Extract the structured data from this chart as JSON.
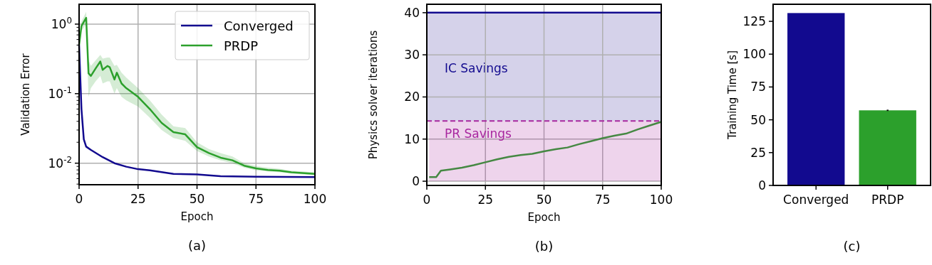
{
  "chart_data": [
    {
      "type": "line",
      "title": "(a)",
      "xlabel": "Epoch",
      "ylabel": "Validation Error",
      "log": "y",
      "xlim": [
        0,
        100
      ],
      "ylim": [
        0.0049,
        1.93
      ],
      "xticks": [
        0,
        25,
        50,
        75,
        100
      ],
      "yticks": [
        {
          "value": 1,
          "label": "10$^{0}$"
        },
        {
          "value": 0.1,
          "label": "10$^{-1}$"
        },
        {
          "value": 0.01,
          "label": "10$^{-2}$"
        }
      ],
      "grid": true,
      "legend": "top right",
      "series": [
        {
          "name": "Converged",
          "color": "#120a8f",
          "x": [
            0,
            1,
            2,
            3,
            5,
            10,
            15,
            20,
            25,
            30,
            40,
            50,
            60,
            75,
            100
          ],
          "values": [
            0.5,
            0.06,
            0.022,
            0.0173,
            0.0155,
            0.0122,
            0.01,
            0.0089,
            0.0082,
            0.0079,
            0.007,
            0.0069,
            0.0065,
            0.0064,
            0.0063
          ]
        },
        {
          "name": "PRDP",
          "color": "#2ca02c",
          "x": [
            0,
            1,
            3,
            4,
            5,
            7,
            9,
            10,
            12,
            13,
            15,
            16,
            18,
            20,
            25,
            30,
            35,
            40,
            45,
            50,
            55,
            60,
            65,
            70,
            75,
            80,
            85,
            90,
            100
          ],
          "values": [
            0.5,
            0.94,
            1.23,
            0.196,
            0.18,
            0.23,
            0.29,
            0.22,
            0.25,
            0.24,
            0.16,
            0.2,
            0.14,
            0.12,
            0.09,
            0.06,
            0.038,
            0.028,
            0.026,
            0.017,
            0.014,
            0.012,
            0.011,
            0.0092,
            0.0084,
            0.008,
            0.0078,
            0.0074,
            0.007
          ],
          "lower": [
            0.45,
            0.8,
            1.0,
            0.09,
            0.12,
            0.15,
            0.18,
            0.14,
            0.15,
            0.15,
            0.1,
            0.12,
            0.09,
            0.08,
            0.065,
            0.045,
            0.03,
            0.023,
            0.021,
            0.015,
            0.0125,
            0.011,
            0.01,
            0.0086,
            0.0079,
            0.0076,
            0.0074,
            0.0071,
            0.0067
          ],
          "upper": [
            0.55,
            1.1,
            1.5,
            0.3,
            0.25,
            0.3,
            0.36,
            0.32,
            0.33,
            0.33,
            0.25,
            0.26,
            0.2,
            0.17,
            0.12,
            0.08,
            0.05,
            0.034,
            0.032,
            0.02,
            0.016,
            0.014,
            0.0125,
            0.01,
            0.0091,
            0.0086,
            0.0083,
            0.0078,
            0.0074
          ]
        }
      ]
    },
    {
      "type": "line",
      "title": "(b)",
      "xlabel": "Epoch",
      "ylabel": "Physics solver iterations",
      "xlim": [
        0,
        100
      ],
      "ylim": [
        -1,
        42
      ],
      "xticks": [
        0,
        25,
        50,
        75,
        100
      ],
      "yticks": [
        0,
        10,
        20,
        30,
        40
      ],
      "grid": true,
      "bands": [
        {
          "axis": "y",
          "from": 14.3,
          "to": 40,
          "label": "IC Savings",
          "color": "#d0cde8"
        }
      ],
      "ref_lines": [
        {
          "axis": "y",
          "value": 14.3,
          "label": "PR Savings",
          "color": "#a8279f",
          "line_style": "dashed"
        }
      ],
      "series": [
        {
          "color": "#2ca02c",
          "x": [
            1,
            4,
            6,
            10,
            15,
            20,
            25,
            30,
            35,
            40,
            45,
            50,
            55,
            60,
            65,
            70,
            75,
            80,
            85,
            90,
            95,
            100
          ],
          "values": [
            1,
            1,
            2.5,
            2.8,
            3.2,
            3.8,
            4.5,
            5.2,
            5.8,
            6.2,
            6.5,
            7.1,
            7.6,
            8,
            8.8,
            9.5,
            10.2,
            10.8,
            11.3,
            12.3,
            13.2,
            14.1
          ]
        },
        {
          "type": "area",
          "color": "#a8279f",
          "x": [
            1,
            4,
            6,
            10,
            15,
            20,
            25,
            30,
            35,
            40,
            45,
            50,
            55,
            60,
            65,
            70,
            75,
            80,
            85,
            90,
            95,
            100
          ],
          "values": [
            14.3,
            14.3,
            14.3,
            14.3,
            14.3,
            14.3,
            14.3,
            14.3,
            14.3,
            14.3,
            14.3,
            14.3,
            14.3,
            14.3,
            14.3,
            14.3,
            14.3,
            14.3,
            14.3,
            14.3,
            14.3,
            14.3
          ]
        },
        {
          "color": "#120a8f",
          "x": [
            0,
            100
          ],
          "values": [
            40,
            40
          ]
        }
      ]
    },
    {
      "type": "bar",
      "title": "(c)",
      "ylabel": "Training Time [s]",
      "categories": [
        "Converged",
        "PRDP"
      ],
      "values": [
        131.3,
        57.2
      ],
      "colors": [
        "#120a8f",
        "#2ca02c"
      ],
      "errors": [
        null,
        0.5
      ],
      "ylim": [
        0,
        138
      ],
      "yticks": [
        0,
        25,
        50,
        75,
        100,
        125
      ],
      "grid": false
    }
  ]
}
